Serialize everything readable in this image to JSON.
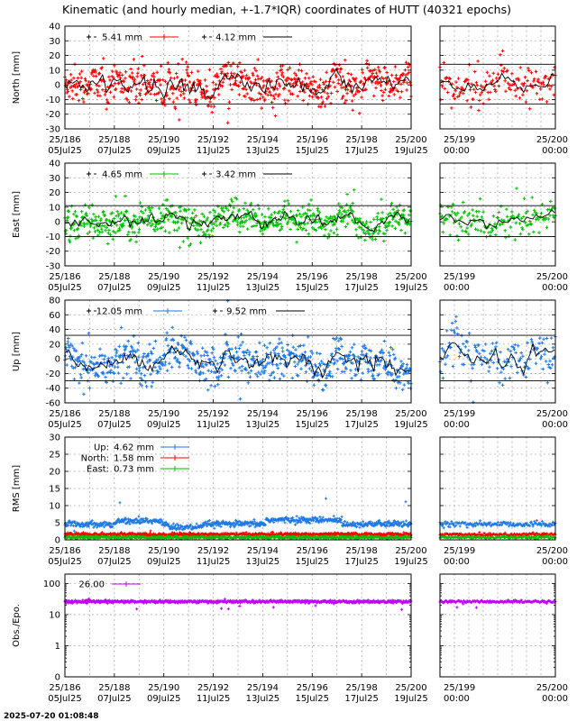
{
  "title": "Kinematic (and hourly median, +-1.7*IQR) coordinates of HUTT (40321 epochs)",
  "footer_timestamp": "2025-07-20 01:08:48",
  "colors": {
    "north": "#ff0000",
    "east": "#00c000",
    "up": "#1e78e6",
    "obs": "#c000ff",
    "median": "#000000"
  },
  "x_axis_main": {
    "range": [
      "2025-07-05T00:00",
      "2025-07-19T00:00"
    ],
    "ticks": [
      {
        "date": "2025-07-05",
        "doy_label": "25/186",
        "date_label": "05Jul25"
      },
      {
        "date": "2025-07-07",
        "doy_label": "25/188",
        "date_label": "07Jul25"
      },
      {
        "date": "2025-07-09",
        "doy_label": "25/190",
        "date_label": "09Jul25"
      },
      {
        "date": "2025-07-11",
        "doy_label": "25/192",
        "date_label": "11Jul25"
      },
      {
        "date": "2025-07-13",
        "doy_label": "25/194",
        "date_label": "13Jul25"
      },
      {
        "date": "2025-07-15",
        "doy_label": "25/196",
        "date_label": "15Jul25"
      },
      {
        "date": "2025-07-17",
        "doy_label": "25/198",
        "date_label": "17Jul25"
      },
      {
        "date": "2025-07-19",
        "doy_label": "25/200",
        "date_label": "19Jul25"
      }
    ]
  },
  "x_axis_zoom": {
    "range": [
      "2025-07-18T00:00",
      "2025-07-19T00:00"
    ],
    "ticks": [
      {
        "date": "2025-07-18T00:00",
        "doy_label": "25/199",
        "date_label": "00:00"
      },
      {
        "date": "2025-07-19T00:00",
        "doy_label": "25/200",
        "date_label": "00:00"
      }
    ]
  },
  "chart_data": [
    {
      "type": "scatter",
      "id": "north",
      "ylabel": "North [mm]",
      "ylim": [
        -30,
        40
      ],
      "yticks": [
        -30,
        -20,
        -10,
        0,
        10,
        20,
        30,
        40
      ],
      "grid": true,
      "bound_lines": [
        14,
        -13
      ],
      "legend": [
        {
          "label": "5.41 mm",
          "series": "kinematic"
        },
        {
          "label": "4.12 mm",
          "series": "hourly median"
        }
      ],
      "series": [
        {
          "name": "kinematic",
          "spread": 5.41
        },
        {
          "name": "hourly median",
          "spread": 4.12
        }
      ]
    },
    {
      "type": "scatter",
      "id": "east",
      "ylabel": "East [mm]",
      "ylim": [
        -30,
        40
      ],
      "yticks": [
        -30,
        -20,
        -10,
        0,
        10,
        20,
        30,
        40
      ],
      "grid": true,
      "bound_lines": [
        11,
        -10
      ],
      "legend": [
        {
          "label": "4.65 mm",
          "series": "kinematic"
        },
        {
          "label": "3.42 mm",
          "series": "hourly median"
        }
      ],
      "series": [
        {
          "name": "kinematic",
          "spread": 4.65
        },
        {
          "name": "hourly median",
          "spread": 3.42
        }
      ]
    },
    {
      "type": "scatter",
      "id": "up",
      "ylabel": "Up [mm]",
      "ylim": [
        -60,
        80
      ],
      "yticks": [
        -60,
        -40,
        -20,
        0,
        20,
        40,
        60,
        80
      ],
      "grid": true,
      "bound_lines": [
        32,
        -30
      ],
      "legend": [
        {
          "label": "12.05 mm",
          "series": "kinematic"
        },
        {
          "label": "9.52 mm",
          "series": "hourly median"
        }
      ],
      "series": [
        {
          "name": "kinematic",
          "spread": 12.05
        },
        {
          "name": "hourly median",
          "spread": 9.52
        }
      ]
    },
    {
      "type": "scatter",
      "id": "rms",
      "ylabel": "RMS [mm]",
      "ylim": [
        0,
        30
      ],
      "yticks": [
        0,
        5,
        10,
        15,
        20,
        25,
        30
      ],
      "grid": true,
      "legend": [
        {
          "prefix": "Up:",
          "label": "4.62 mm",
          "series": "up"
        },
        {
          "prefix": "North:",
          "label": "1.58 mm",
          "series": "north"
        },
        {
          "prefix": "East:",
          "label": "0.73 mm",
          "series": "east"
        }
      ],
      "series": [
        {
          "name": "Up",
          "mean": 4.62
        },
        {
          "name": "North",
          "mean": 1.58
        },
        {
          "name": "East",
          "mean": 0.73
        }
      ]
    },
    {
      "type": "scatter",
      "id": "obs",
      "ylabel": "Obs./Epo.",
      "scale": "log",
      "ylim": [
        0.1,
        200
      ],
      "yticks": [
        {
          "value": 0.1,
          "label": "0"
        },
        {
          "value": 1,
          "label": "1"
        },
        {
          "value": 10,
          "label": "10"
        },
        {
          "value": 100,
          "label": "100"
        }
      ],
      "grid": true,
      "legend": [
        {
          "label": "26.00",
          "series": "obs"
        }
      ],
      "series": [
        {
          "name": "obs",
          "mean": 26.0
        }
      ]
    }
  ]
}
